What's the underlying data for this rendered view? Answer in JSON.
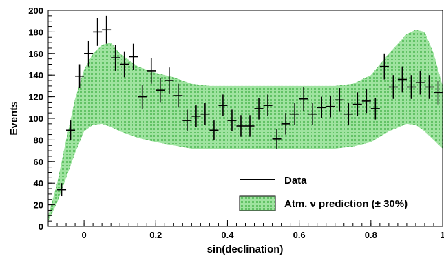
{
  "chart_data": {
    "type": "scatter",
    "title": "",
    "xlabel": "sin(declination)",
    "ylabel": "Events",
    "xlim": [
      -0.1,
      1.0
    ],
    "ylim": [
      0,
      200
    ],
    "x_ticks": [
      0,
      0.2,
      0.4,
      0.6,
      0.8,
      1
    ],
    "x_tick_labels": [
      "0",
      "0.2",
      "0.4",
      "0.6",
      "0.8",
      "1"
    ],
    "y_ticks": [
      0,
      20,
      40,
      60,
      80,
      100,
      120,
      140,
      160,
      180,
      200
    ],
    "y_tick_labels": [
      "0",
      "20",
      "40",
      "60",
      "80",
      "100",
      "120",
      "140",
      "160",
      "180",
      "200"
    ],
    "grid": false,
    "legend_position": "bottom-right",
    "band_color": "#9fe3a0",
    "data_color": "#000000",
    "series": [
      {
        "name": "Data",
        "marker": "errorbar",
        "bin_half_width": 0.0125,
        "x": [
          -0.0625,
          -0.0375,
          -0.0125,
          0.0125,
          0.0375,
          0.0625,
          0.0875,
          0.1125,
          0.1375,
          0.1625,
          0.1875,
          0.2125,
          0.2375,
          0.2625,
          0.2875,
          0.3125,
          0.3375,
          0.3625,
          0.3875,
          0.4125,
          0.4375,
          0.4625,
          0.4875,
          0.5125,
          0.5375,
          0.5625,
          0.5875,
          0.6125,
          0.6375,
          0.6625,
          0.6875,
          0.7125,
          0.7375,
          0.7625,
          0.7875,
          0.8125,
          0.8375,
          0.8625,
          0.8875,
          0.9125,
          0.9375,
          0.9625,
          0.9875
        ],
        "y": [
          34,
          89,
          139,
          160,
          180,
          182,
          156,
          150,
          157,
          120,
          144,
          126,
          135,
          121,
          98,
          102,
          104,
          89,
          112,
          98,
          93,
          93,
          109,
          112,
          81,
          95,
          104,
          118,
          104,
          110,
          111,
          117,
          104,
          113,
          116,
          109,
          148,
          129,
          136,
          129,
          133,
          129,
          124
        ],
        "y_err": [
          6,
          9,
          11,
          12,
          13,
          13,
          12,
          12,
          12,
          11,
          12,
          11,
          12,
          11,
          10,
          10,
          10,
          9,
          10,
          10,
          10,
          10,
          10,
          10,
          9,
          10,
          10,
          11,
          10,
          10,
          10,
          11,
          10,
          11,
          11,
          10,
          12,
          11,
          12,
          11,
          11,
          11,
          11
        ]
      },
      {
        "name": "Atm. ν prediction (± 30%)",
        "marker": "band",
        "x": [
          -0.1,
          -0.075,
          -0.05,
          -0.025,
          0,
          0.025,
          0.05,
          0.075,
          0.1,
          0.15,
          0.2,
          0.25,
          0.3,
          0.35,
          0.4,
          0.45,
          0.5,
          0.55,
          0.6,
          0.65,
          0.7,
          0.75,
          0.8,
          0.85,
          0.9,
          0.925,
          0.95,
          0.975,
          1.0
        ],
        "upper": [
          10,
          40,
          80,
          118,
          145,
          160,
          168,
          170,
          160,
          148,
          142,
          138,
          132,
          130,
          130,
          130,
          130,
          130,
          130,
          130,
          130,
          132,
          140,
          160,
          178,
          182,
          180,
          160,
          130
        ],
        "lower": [
          5,
          22,
          45,
          68,
          88,
          94,
          95,
          92,
          88,
          82,
          78,
          75,
          72,
          72,
          72,
          72,
          72,
          72,
          72,
          72,
          72,
          74,
          78,
          88,
          95,
          94,
          88,
          80,
          72
        ]
      }
    ]
  }
}
